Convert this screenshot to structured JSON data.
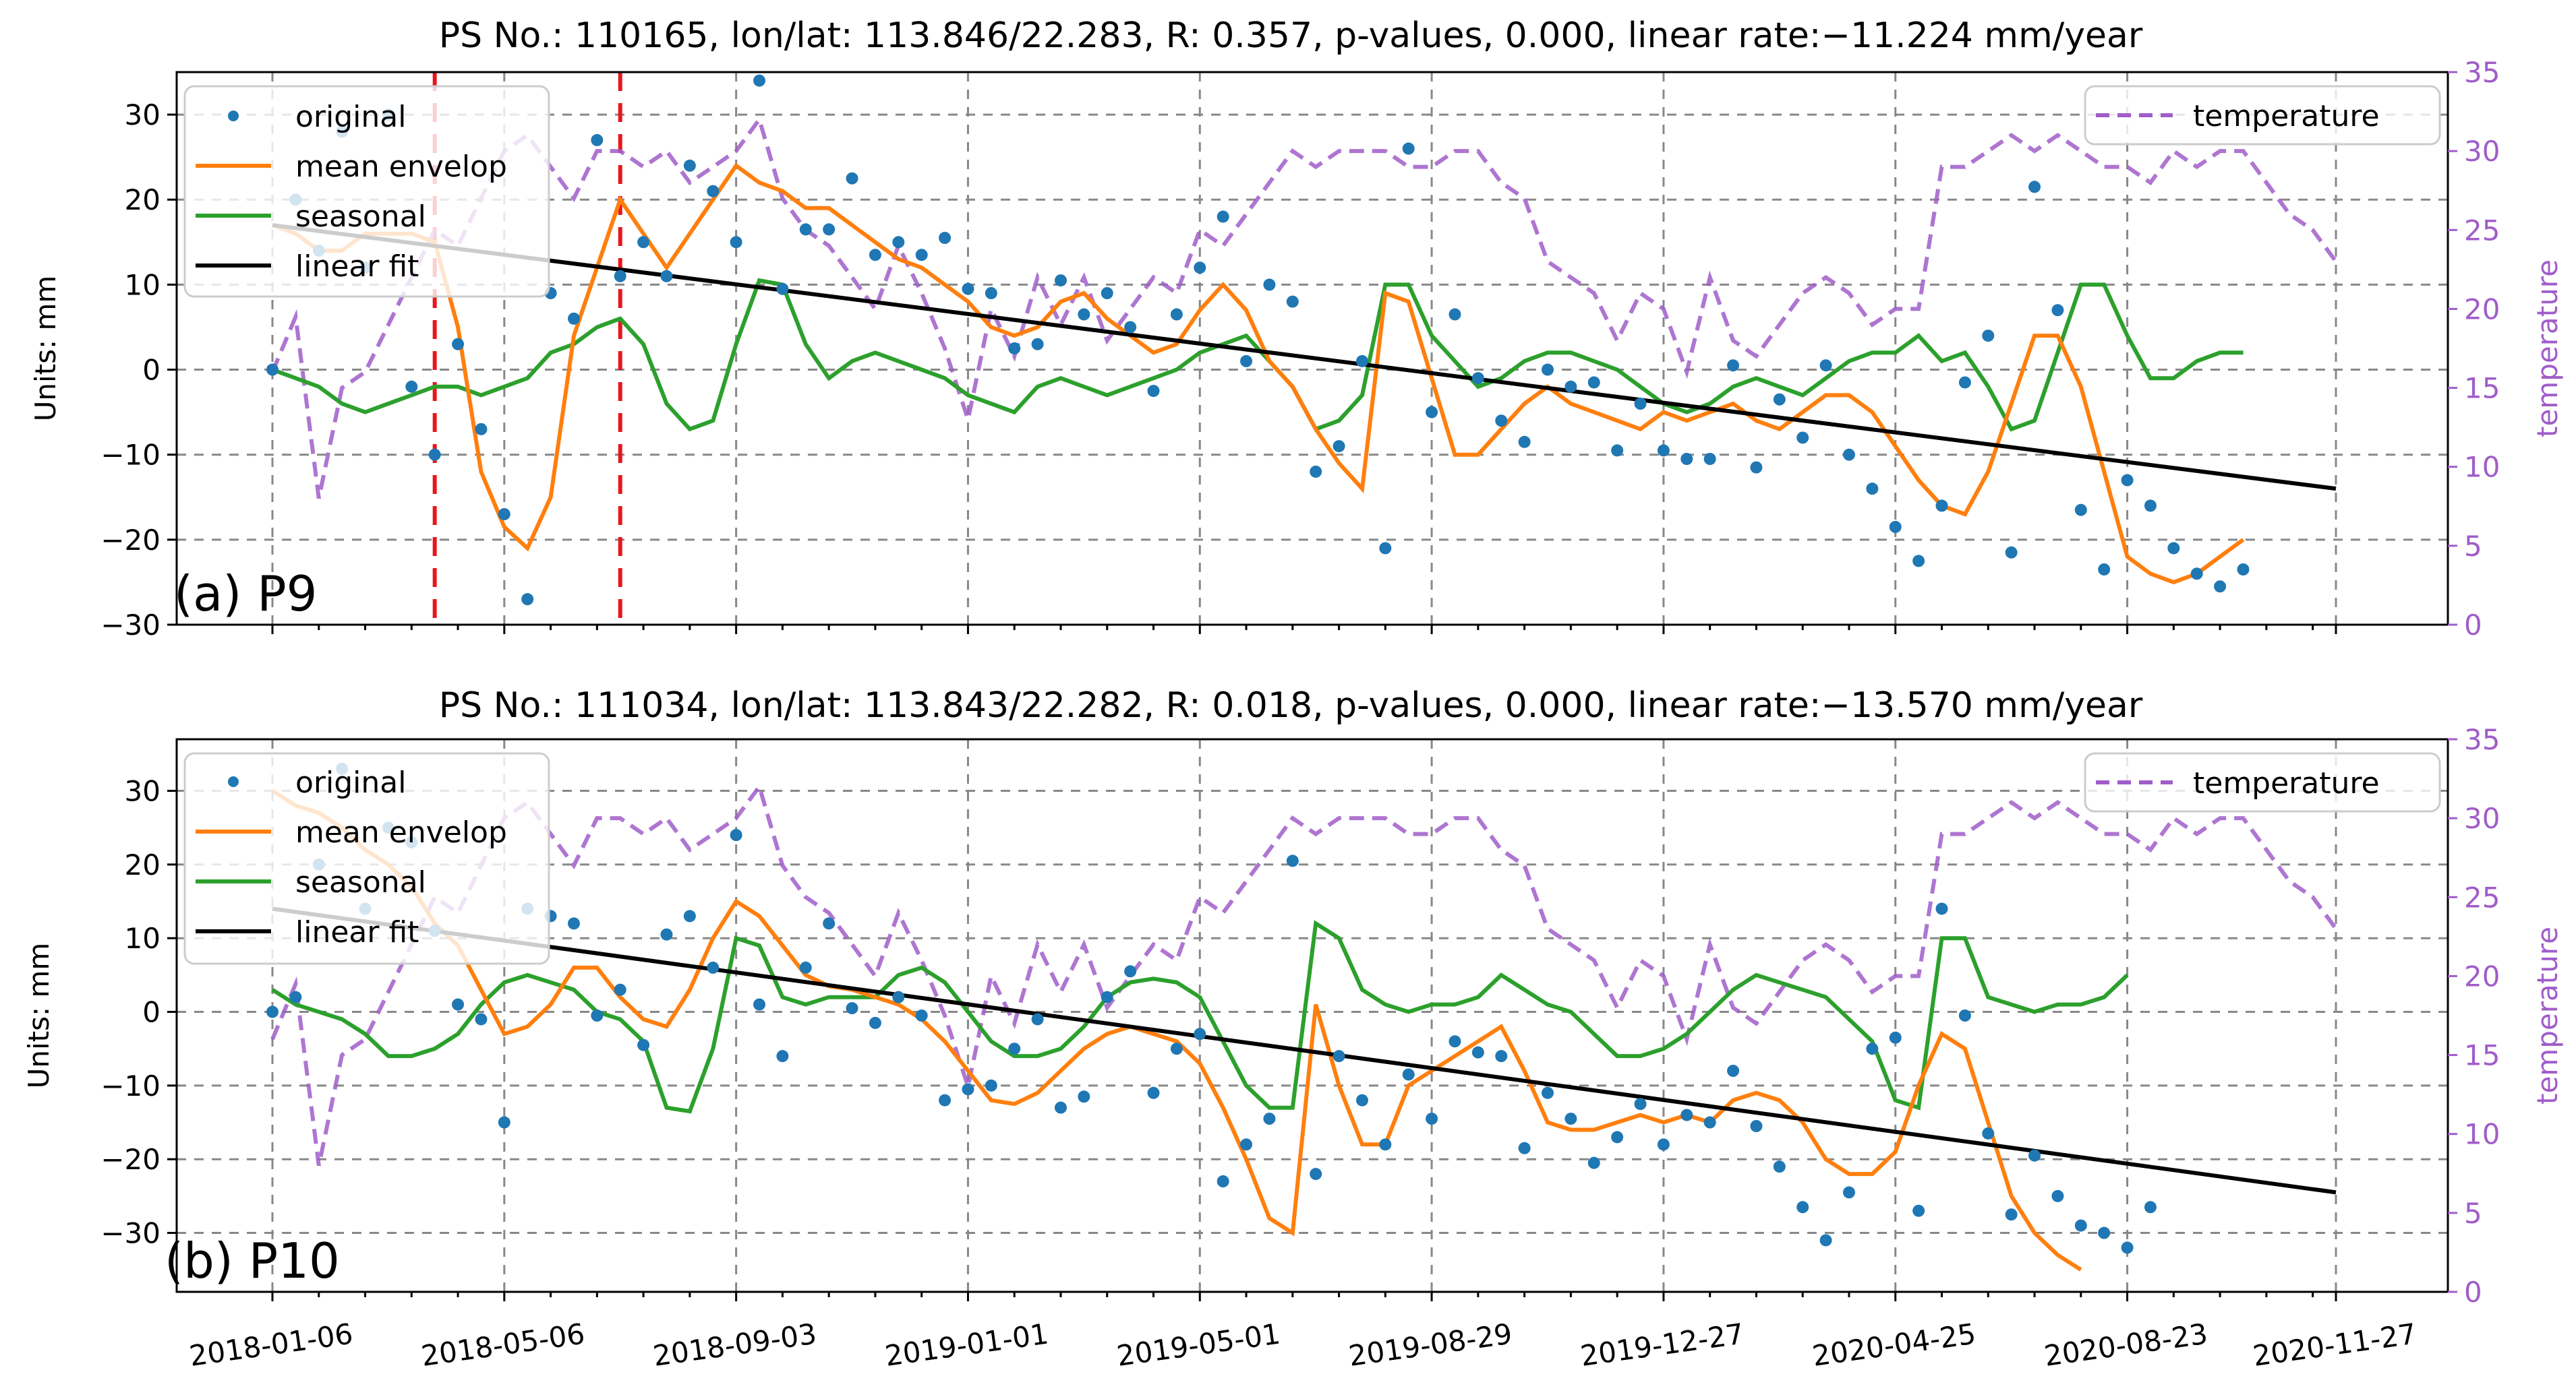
{
  "colors": {
    "original": "#1f77b4",
    "envelope": "#ff7f0e",
    "seasonal": "#2ca02c",
    "linear": "#000000",
    "temperature": "#a05dc9",
    "event_line": "#e8161c",
    "grid": "#888888"
  },
  "x_tick_labels": [
    "2018-01-06",
    "2018-05-06",
    "2018-09-03",
    "2019-01-01",
    "2019-05-01",
    "2019-08-29",
    "2019-12-27",
    "2020-04-25",
    "2020-08-23",
    "2020-11-27"
  ],
  "y_axis_label": "Units: mm",
  "right_axis_label": "temperature",
  "temperature": [
    16,
    19.5,
    8,
    15,
    16,
    19,
    22,
    25,
    24,
    27,
    30,
    31,
    29,
    27,
    30,
    30,
    29,
    30,
    28,
    29,
    30,
    32,
    27,
    25,
    24,
    22,
    20,
    24,
    21,
    17.5,
    13,
    20,
    17,
    22,
    19,
    22,
    18,
    20,
    22,
    21,
    25,
    24,
    26,
    28,
    30,
    29,
    30,
    30,
    30,
    29,
    29,
    30,
    30,
    28,
    27,
    23,
    22,
    21,
    18,
    21,
    20,
    16,
    22,
    18,
    17,
    19,
    21,
    22,
    21,
    19,
    20,
    20,
    29,
    29,
    30,
    31,
    30,
    31,
    30,
    29,
    29,
    28,
    30,
    29,
    30,
    30,
    28,
    26,
    25,
    23,
    22,
    21
  ],
  "charts": [
    {
      "title": "PS No.: 110165, lon/lat: 113.846/22.283, R: 0.357, p-values, 0.000, linear rate:−11.224 mm/year",
      "panel_label": "(a) P9",
      "ylim": [
        -30,
        35
      ],
      "y_ticks": [
        30,
        20,
        10,
        0,
        -10,
        -20,
        -30
      ],
      "right_ylim": [
        0,
        35
      ],
      "right_ticks": [
        35,
        30,
        25,
        20,
        15,
        10,
        5,
        0
      ],
      "event_lines_x": [
        7,
        15
      ],
      "legend": {
        "original": "original",
        "envelope": "mean envelop",
        "seasonal": "seasonal",
        "linear": "linear fit",
        "temperature": "temperature"
      },
      "original": [
        0,
        20,
        14,
        28,
        12,
        30,
        -2,
        -10,
        3,
        -7,
        -17,
        -27,
        9,
        6,
        27,
        11,
        15,
        11,
        24,
        21,
        15,
        34,
        9.5,
        16.5,
        16.5,
        22.5,
        13.5,
        15,
        13.5,
        15.5,
        9.5,
        9,
        2.5,
        3,
        10.5,
        6.5,
        9,
        5,
        -2.5,
        6.5,
        12,
        18,
        1,
        10,
        8,
        -12,
        -9,
        1,
        -21,
        26,
        -5,
        6.5,
        -1,
        -6,
        -8.5,
        0,
        -2,
        -1.5,
        -9.5,
        -4,
        -9.5,
        -10.5,
        -10.5,
        0.5,
        -11.5,
        -3.5,
        -8,
        0.5,
        -10,
        -14,
        -18.5,
        -22.5,
        -16,
        -1.5,
        4,
        -21.5,
        21.5,
        7,
        -16.5,
        -23.5,
        -13,
        -16,
        -21,
        -24,
        -25.5,
        -23.5
      ],
      "envelope": [
        17,
        16,
        14,
        14,
        16,
        16,
        16,
        15,
        5,
        -12,
        -18.5,
        -21,
        -15,
        4,
        12,
        20,
        16,
        12,
        16,
        20,
        24,
        22,
        21,
        19,
        19,
        17,
        15,
        13,
        12,
        10,
        8,
        5,
        4,
        5,
        8,
        9,
        6,
        4,
        2,
        3,
        7,
        10,
        7,
        1,
        -2,
        -7,
        -11,
        -14,
        9,
        8,
        -1,
        -10,
        -10,
        -7,
        -4,
        -2,
        -4,
        -5,
        -6,
        -7,
        -5,
        -6,
        -5,
        -4,
        -6,
        -7,
        -5,
        -3,
        -3,
        -5,
        -9,
        -13,
        -16,
        -17,
        -12,
        -4,
        4,
        4,
        -2,
        -12,
        -22,
        -24,
        -25,
        -24,
        -22,
        -20
      ],
      "seasonal": [
        0,
        -1,
        -2,
        -4,
        -5,
        -4,
        -3,
        -2,
        -2,
        -3,
        -2,
        -1,
        2,
        3,
        5,
        6,
        3,
        -4,
        -7,
        -6,
        3,
        10.5,
        10,
        3,
        -1,
        1,
        2,
        1,
        0,
        -1,
        -3,
        -4,
        -5,
        -2,
        -1,
        -2,
        -3,
        -2,
        -1,
        0,
        2,
        3,
        4,
        1,
        -2,
        -7,
        -6,
        -3,
        10,
        10,
        4,
        1,
        -2,
        -1,
        1,
        2,
        2,
        1,
        0,
        -2,
        -4,
        -5,
        -4,
        -2,
        -1,
        -2,
        -3,
        -1,
        1,
        2,
        2,
        4,
        1,
        2,
        -2,
        -7,
        -6,
        2,
        10,
        10,
        4,
        -1,
        -1,
        1,
        2,
        2
      ]
    },
    {
      "title": "PS No.: 111034, lon/lat: 113.843/22.282, R: 0.018, p-values, 0.000, linear rate:−13.570 mm/year",
      "panel_label": "(b) P10",
      "ylim": [
        -38,
        37
      ],
      "y_ticks": [
        30,
        20,
        10,
        0,
        -10,
        -20,
        -30
      ],
      "right_ylim": [
        0,
        35
      ],
      "right_ticks": [
        35,
        30,
        25,
        20,
        15,
        10,
        5,
        0
      ],
      "event_lines_x": [],
      "legend": {
        "original": "original",
        "envelope": "mean envelop",
        "seasonal": "seasonal",
        "linear": "linear fit",
        "temperature": "temperature"
      },
      "original": [
        0,
        2,
        20,
        33,
        14,
        25,
        23,
        11,
        1,
        -1,
        -15,
        14,
        13,
        12,
        -0.5,
        3,
        -4.5,
        10.5,
        13,
        6,
        24,
        1,
        -6,
        6,
        12,
        0.5,
        -1.5,
        2,
        -0.5,
        -12,
        -10.5,
        -10,
        -5,
        -1,
        -13,
        -11.5,
        2,
        5.5,
        -11,
        -5,
        -3,
        -23,
        -18,
        -14.5,
        20.5,
        -22,
        -6,
        -12,
        -18,
        -8.5,
        -14.5,
        -4,
        -5.5,
        -6,
        -18.5,
        -11,
        -14.5,
        -20.5,
        -17,
        -12.5,
        -18,
        -14,
        -15,
        -8,
        -15.5,
        -21,
        -26.5,
        -31,
        -24.5,
        -5,
        -3.5,
        -27,
        14,
        -0.5,
        -16.5,
        -27.5,
        -19.5,
        -25,
        -29,
        -30,
        -32,
        -26.5
      ],
      "envelope": [
        30,
        28,
        27,
        25,
        22,
        20,
        17,
        12,
        9,
        3,
        -3,
        -2,
        1,
        6,
        6,
        2,
        -1,
        -2,
        3,
        10,
        15,
        13,
        9,
        5,
        3.5,
        3,
        2,
        1,
        -1,
        -4,
        -8,
        -12,
        -12.5,
        -11,
        -8,
        -5,
        -3,
        -2,
        -3,
        -4,
        -7,
        -13,
        -20,
        -28,
        -30,
        1,
        -10,
        -18,
        -18,
        -10,
        -8,
        -6,
        -4,
        -2,
        -8,
        -15,
        -16,
        -16,
        -15,
        -14,
        -15,
        -14,
        -15,
        -12,
        -11,
        -12,
        -15,
        -20,
        -22,
        -22,
        -19,
        -10,
        -3,
        -5,
        -15,
        -25,
        -30,
        -33,
        -35
      ],
      "seasonal": [
        3,
        1,
        0,
        -1,
        -3,
        -6,
        -6,
        -5,
        -3,
        1,
        4,
        5,
        4,
        3,
        0,
        -1,
        -4,
        -13,
        -13.5,
        -5,
        10,
        9,
        2,
        1,
        2,
        2,
        2,
        5,
        6,
        4,
        0,
        -4,
        -6,
        -6,
        -5,
        -2,
        2,
        4,
        4.5,
        4,
        2,
        -4,
        -10,
        -13,
        -13,
        12,
        10,
        3,
        1,
        0,
        1,
        1,
        2,
        5,
        3,
        1,
        0,
        -3,
        -6,
        -6,
        -5,
        -3,
        0,
        3,
        5,
        4,
        3,
        2,
        -1,
        -4,
        -12,
        -13,
        10,
        10,
        2,
        1,
        0,
        1,
        1,
        2,
        5
      ]
    }
  ]
}
